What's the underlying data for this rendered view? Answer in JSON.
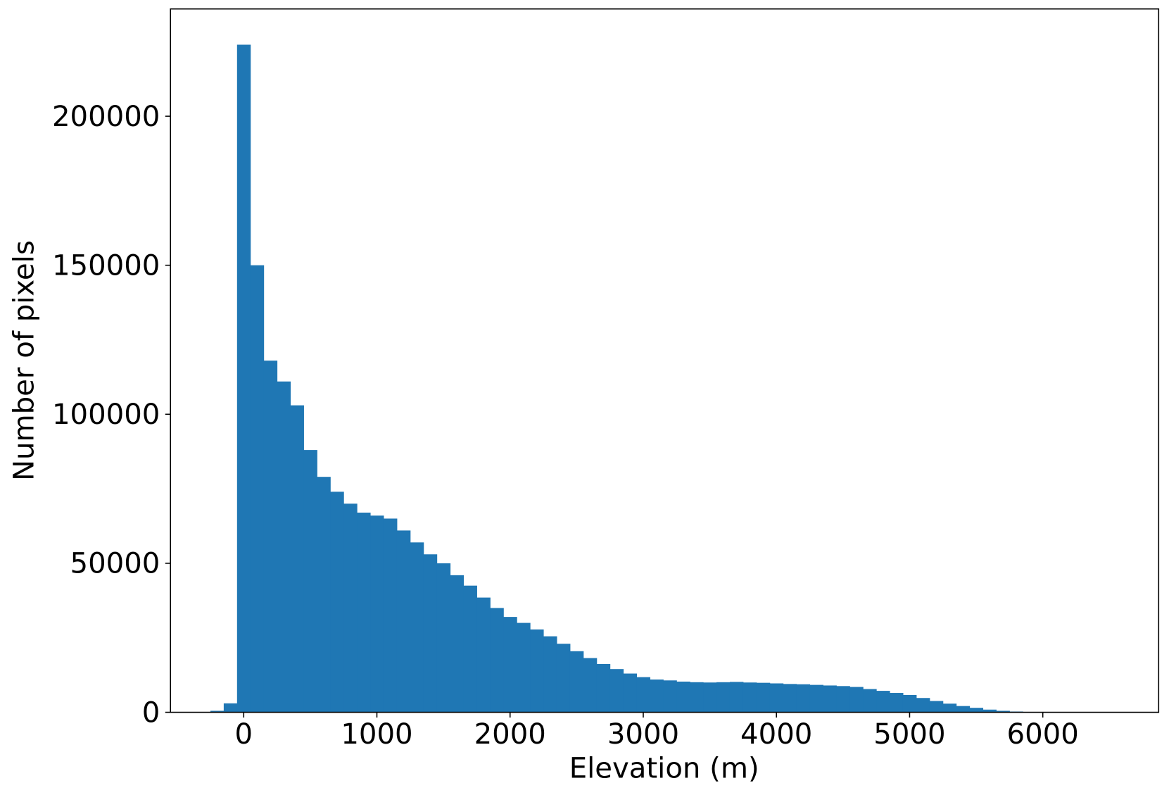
{
  "chart_data": {
    "type": "histogram",
    "x_label": "Elevation (m)",
    "y_label": "Number of pixels",
    "color": "#1f77b4",
    "bins": [
      -250,
      -150,
      -50,
      50,
      150,
      250,
      350,
      450,
      550,
      650,
      750,
      850,
      950,
      1050,
      1150,
      1250,
      1350,
      1450,
      1550,
      1650,
      1750,
      1850,
      1950,
      2050,
      2150,
      2250,
      2350,
      2450,
      2550,
      2650,
      2750,
      2850,
      2950,
      3050,
      3150,
      3250,
      3350,
      3450,
      3550,
      3650,
      3750,
      3850,
      3950,
      4050,
      4150,
      4250,
      4350,
      4450,
      4550,
      4650,
      4750,
      4850,
      4950,
      5050,
      5150,
      5250,
      5350,
      5450,
      5550,
      5650,
      5750,
      5850,
      5950,
      6050,
      6150,
      6250,
      6350,
      6450,
      6550
    ],
    "counts": [
      500,
      3000,
      224000,
      150000,
      118000,
      111000,
      103000,
      88000,
      79000,
      74000,
      70000,
      67000,
      66000,
      65000,
      61000,
      57000,
      53000,
      50000,
      46000,
      42500,
      38500,
      35000,
      32000,
      30000,
      27800,
      25500,
      23000,
      20500,
      18200,
      16200,
      14500,
      13000,
      11800,
      11000,
      10700,
      10300,
      10100,
      10000,
      10100,
      10200,
      10000,
      9900,
      9700,
      9500,
      9400,
      9200,
      9000,
      8800,
      8500,
      7800,
      7200,
      6500,
      5800,
      4800,
      3800,
      2900,
      2100,
      1500,
      900,
      500,
      250,
      120,
      60,
      30,
      15,
      8,
      4,
      2
    ],
    "xlim": [
      -550,
      6870
    ],
    "ylim": [
      0,
      236000
    ],
    "xticks": [
      0,
      1000,
      2000,
      3000,
      4000,
      5000,
      6000
    ],
    "yticks": [
      0,
      50000,
      100000,
      150000,
      200000
    ]
  }
}
